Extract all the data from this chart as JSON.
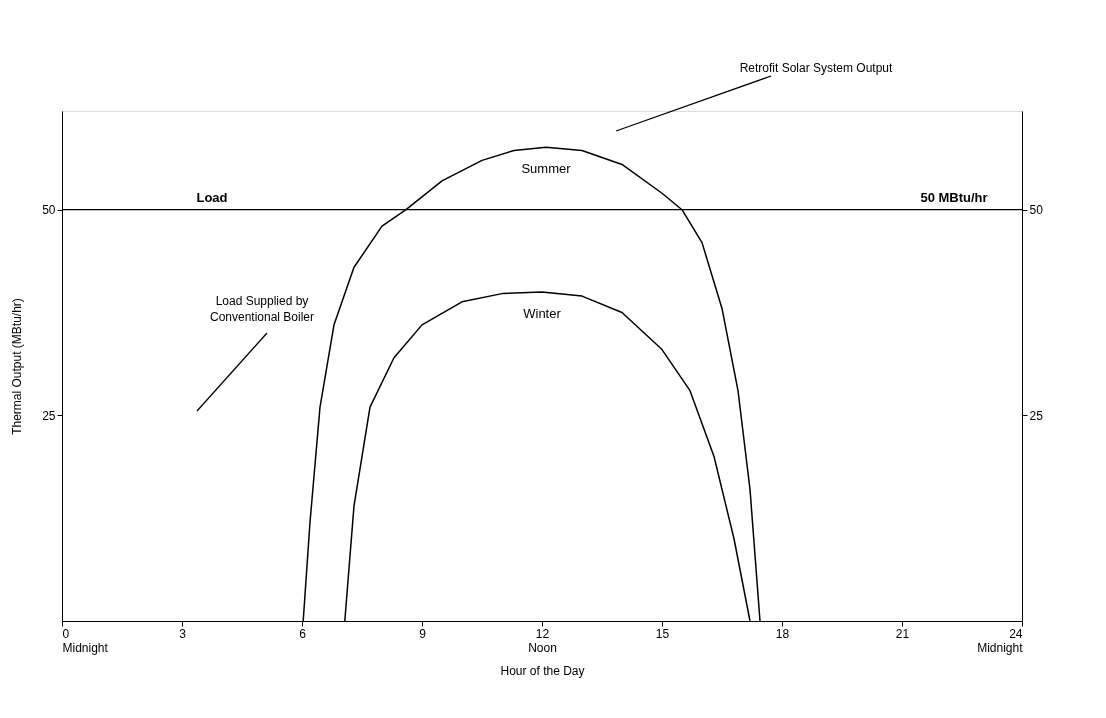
{
  "chart_data": {
    "type": "line",
    "xlabel": "Hour of the Day",
    "ylabel": "Thermal Output (MBtu/hr)",
    "x": [
      6.03,
      6.2,
      6.45,
      6.8,
      7.3,
      8,
      8.6,
      9.5,
      10.5,
      11.3,
      12.1,
      13,
      14,
      15,
      15.5,
      16,
      16.5,
      16.9,
      17.2,
      17.45
    ],
    "series": [
      {
        "name": "Summer",
        "color": "#000000",
        "values": [
          0,
          12,
          26,
          36,
          43,
          48,
          50,
          53.5,
          56,
          57.2,
          57.6,
          57.2,
          55.5,
          52,
          50,
          46,
          38,
          28,
          16,
          0
        ]
      },
      {
        "name": "Winter",
        "color": "#000000",
        "x": [
          7.07,
          7.3,
          7.7,
          8.3,
          9,
          10,
          11,
          12,
          13,
          14,
          15,
          15.7,
          16.3,
          16.8,
          17.2
        ],
        "values": [
          0,
          14,
          26,
          32,
          36,
          38.8,
          39.8,
          40,
          39.5,
          37.5,
          33,
          28,
          20,
          10,
          0
        ]
      }
    ],
    "xlim": [
      0,
      24
    ],
    "xticks": [
      {
        "value": 0,
        "label": "0\nMidnight"
      },
      3,
      6,
      9,
      {
        "value": 12,
        "label": "12\nNoon"
      },
      15,
      18,
      21,
      {
        "value": 24,
        "label": "24\nMidnight"
      }
    ],
    "ylim": [
      0,
      62
    ],
    "yticks": [
      25,
      50
    ],
    "y2lim": [
      0,
      62
    ],
    "y2ticks": [
      25,
      50
    ],
    "ref_lines": [
      {
        "axis": "y",
        "value": 50,
        "label": "Load",
        "color": "#000000"
      }
    ],
    "annotations": [
      "Retrofit Solar System Output",
      "Load Supplied by Conventional Boiler",
      {
        "text": "50 MBtu/hr",
        "x": 22.3,
        "y": 50
      }
    ],
    "grid": false,
    "legend": false,
    "marker": "none",
    "line_style": "solid"
  }
}
